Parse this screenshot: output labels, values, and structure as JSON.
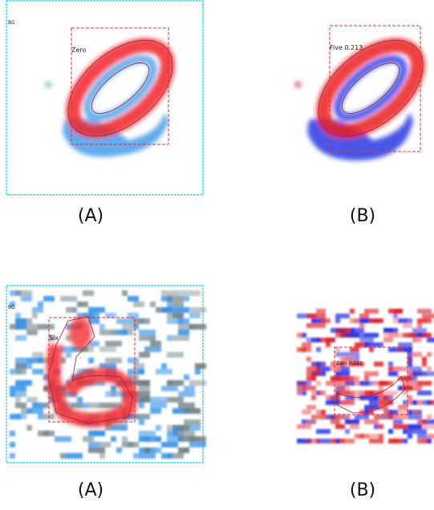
{
  "panels": [
    {
      "background_label": "BG",
      "class_label": "Zero",
      "caption": "(A)"
    },
    {
      "class_label": "Five 0.213",
      "caption": "(B)"
    },
    {
      "background_label": "BG",
      "class_label": "Six",
      "caption": "(A)"
    },
    {
      "class_label": "Zero 0.141",
      "caption": "(B)"
    }
  ]
}
